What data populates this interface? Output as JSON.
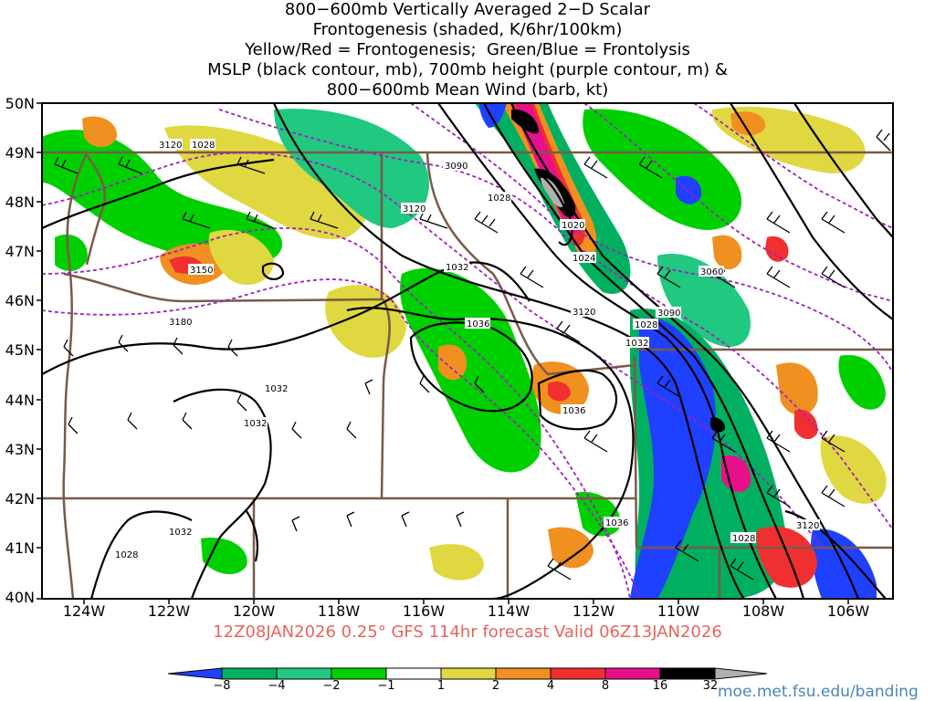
{
  "title_lines": [
    "800−600mb Vertically Averaged 2−D Scalar",
    "Frontogenesis (shaded, K/6hr/100km)",
    "Yellow/Red = Frontogenesis;  Green/Blue = Frontolysis",
    "MSLP (black contour, mb), 700mb height (purple contour, m) &",
    "800−600mb Mean Wind (barb, kt)"
  ],
  "valid_line": "12Z08JAN2026 0.25° GFS 114hr forecast Valid 06Z13JAN2026",
  "source_url": "moe.met.fsu.edu/banding",
  "lat_labels": [
    "50N",
    "49N",
    "48N",
    "47N",
    "46N",
    "45N",
    "44N",
    "43N",
    "42N",
    "41N",
    "40N"
  ],
  "lon_labels": [
    "124W",
    "122W",
    "120W",
    "118W",
    "116W",
    "114W",
    "112W",
    "110W",
    "108W",
    "106W"
  ],
  "colorbar": {
    "labels": [
      "−8",
      "−4",
      "−2",
      "−1",
      "1",
      "2",
      "4",
      "8",
      "16",
      "32"
    ],
    "colors": [
      "#2040ff",
      "#00b060",
      "#20c880",
      "#00d000",
      "#ffffff",
      "#e0d840",
      "#f09020",
      "#f03030",
      "#e8108a",
      "#000000",
      "#b0b0b0"
    ]
  },
  "mslp_labels": [
    "1028",
    "1028",
    "1024",
    "1020",
    "1032",
    "1036",
    "1032",
    "1032",
    "1036",
    "1028",
    "1032",
    "1036",
    "1028",
    "1032",
    "1028"
  ],
  "height_labels": [
    "3120",
    "3090",
    "3120",
    "3150",
    "3180",
    "3120",
    "3090",
    "3060",
    "3120"
  ],
  "colors": {
    "mslp": "#000000",
    "height": "#a020c0",
    "border": "#7a5a48",
    "valid": "#e8635e",
    "url": "#4a86b8"
  }
}
